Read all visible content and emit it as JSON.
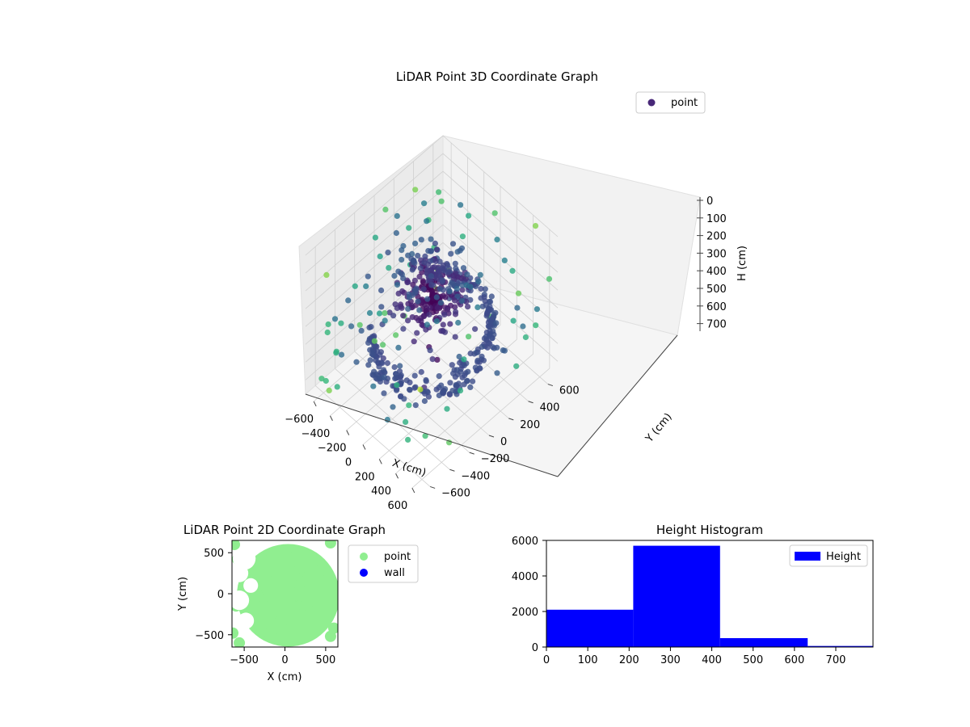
{
  "colors": {
    "viridis_dark": "#440154",
    "viridis_mid": "#31688e",
    "viridis_light": "#b5de2b",
    "point_2d": "#90ee90",
    "wall_2d": "#0000ff",
    "hist_bar": "#0000ff",
    "pane": "#f2f2f2",
    "grid": "#d0d0d0"
  },
  "chart_data": [
    {
      "type": "scatter",
      "title": "LiDAR Point 3D Coordinate Graph",
      "xlabel": "X (cm)",
      "ylabel": "Y (cm)",
      "zlabel": "H (cm)",
      "x_ticks": [
        "−600",
        "−400",
        "−200",
        "0",
        "200",
        "400",
        "600"
      ],
      "y_ticks": [
        "−600",
        "−400",
        "−200",
        "0",
        "200",
        "400",
        "600"
      ],
      "z_ticks": [
        "0",
        "100",
        "200",
        "300",
        "400",
        "500",
        "600",
        "700"
      ],
      "xlim": [
        -700,
        700
      ],
      "ylim": [
        -700,
        700
      ],
      "zlim": [
        0,
        780
      ],
      "z_inverted": true,
      "colormap": "viridis",
      "legend": {
        "position": "top-right",
        "entries": [
          "point"
        ]
      },
      "grid": true
    },
    {
      "type": "scatter",
      "title": "LiDAR Point 2D Coordinate Graph",
      "xlabel": "X (cm)",
      "ylabel": "Y (cm)",
      "x_ticks": [
        "−500",
        "0",
        "500"
      ],
      "y_ticks": [
        "500",
        "0",
        "−500"
      ],
      "xlim": [
        -650,
        650
      ],
      "ylim": [
        -650,
        650
      ],
      "series": [
        {
          "name": "point",
          "color": "#90ee90"
        },
        {
          "name": "wall",
          "color": "#0000ff"
        }
      ],
      "legend": {
        "position": "outside-right",
        "entries": [
          "point",
          "wall"
        ]
      }
    },
    {
      "type": "bar",
      "title": "Height Histogram",
      "x_ticks": [
        "0",
        "100",
        "200",
        "300",
        "400",
        "500",
        "600",
        "700"
      ],
      "y_ticks": [
        "0",
        "2000",
        "4000",
        "6000"
      ],
      "xlim": [
        0,
        790
      ],
      "ylim": [
        0,
        6000
      ],
      "bins": [
        {
          "start": 0,
          "end": 210,
          "count": 2100
        },
        {
          "start": 210,
          "end": 420,
          "count": 5700
        },
        {
          "start": 420,
          "end": 632,
          "count": 500
        },
        {
          "start": 632,
          "end": 790,
          "count": 60
        }
      ],
      "legend": {
        "position": "top-right",
        "entries": [
          "Height"
        ]
      }
    }
  ]
}
